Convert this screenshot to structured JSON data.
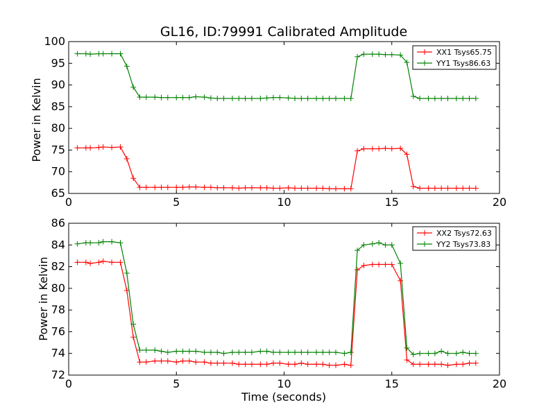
{
  "chart_data": [
    {
      "type": "line",
      "title": "GL16, ID:79991 Calibrated Amplitude",
      "xlabel": "",
      "ylabel": "Power in Kelvin",
      "xlim": [
        0,
        20
      ],
      "ylim": [
        65,
        100
      ],
      "xticks": [
        "0",
        "5",
        "10",
        "15",
        "20"
      ],
      "yticks": [
        "65",
        "70",
        "75",
        "80",
        "85",
        "90",
        "95",
        "100"
      ],
      "grid": false,
      "legend_position": "top-right",
      "x": [
        0.4,
        0.8,
        1.0,
        1.4,
        1.6,
        2.0,
        2.4,
        2.7,
        3.0,
        3.3,
        3.6,
        4.0,
        4.3,
        4.6,
        5.0,
        5.3,
        5.6,
        5.9,
        6.3,
        6.6,
        6.9,
        7.2,
        7.6,
        7.9,
        8.2,
        8.5,
        8.9,
        9.2,
        9.5,
        9.8,
        10.2,
        10.5,
        10.8,
        11.1,
        11.5,
        11.8,
        12.1,
        12.4,
        12.8,
        13.1,
        13.4,
        13.7,
        14.1,
        14.4,
        14.7,
        15.0,
        15.4,
        15.7,
        16.0,
        16.3,
        16.7,
        17.0,
        17.3,
        17.6,
        18.0,
        18.3,
        18.6,
        18.9
      ],
      "series": [
        {
          "name": "XX1 Tsys65.75",
          "color": "#ff0000",
          "values": [
            75.5,
            75.5,
            75.5,
            75.6,
            75.7,
            75.6,
            75.7,
            73.0,
            68.5,
            66.4,
            66.4,
            66.4,
            66.4,
            66.4,
            66.4,
            66.4,
            66.5,
            66.5,
            66.4,
            66.4,
            66.3,
            66.3,
            66.3,
            66.2,
            66.3,
            66.3,
            66.3,
            66.3,
            66.2,
            66.2,
            66.3,
            66.2,
            66.2,
            66.2,
            66.2,
            66.2,
            66.1,
            66.1,
            66.1,
            66.1,
            74.8,
            75.3,
            75.3,
            75.3,
            75.4,
            75.3,
            75.4,
            74.0,
            66.6,
            66.2,
            66.2,
            66.2,
            66.2,
            66.2,
            66.2,
            66.2,
            66.2,
            66.2
          ]
        },
        {
          "name": "YY1 Tsys86.63",
          "color": "#008000",
          "values": [
            97.2,
            97.2,
            97.1,
            97.2,
            97.2,
            97.2,
            97.2,
            94.3,
            89.5,
            87.2,
            87.2,
            87.2,
            87.1,
            87.1,
            87.1,
            87.1,
            87.1,
            87.3,
            87.2,
            87.0,
            86.9,
            86.9,
            86.9,
            86.9,
            86.9,
            86.9,
            86.9,
            87.0,
            87.1,
            87.1,
            87.0,
            86.9,
            86.9,
            86.9,
            86.9,
            86.9,
            86.9,
            86.9,
            86.9,
            86.9,
            96.5,
            97.1,
            97.1,
            97.1,
            97.0,
            97.0,
            96.9,
            95.2,
            87.4,
            86.9,
            86.9,
            86.9,
            86.9,
            86.9,
            86.9,
            86.9,
            86.9,
            86.9
          ]
        }
      ]
    },
    {
      "type": "line",
      "title": "",
      "xlabel": "Time (seconds)",
      "ylabel": "Power in Kelvin",
      "xlim": [
        0,
        20
      ],
      "ylim": [
        72,
        86
      ],
      "xticks": [
        "0",
        "5",
        "10",
        "15",
        "20"
      ],
      "yticks": [
        "72",
        "74",
        "76",
        "78",
        "80",
        "82",
        "84",
        "86"
      ],
      "grid": false,
      "legend_position": "top-right",
      "x": [
        0.4,
        0.8,
        1.0,
        1.4,
        1.6,
        2.0,
        2.4,
        2.7,
        3.0,
        3.3,
        3.6,
        4.0,
        4.3,
        4.6,
        5.0,
        5.3,
        5.6,
        5.9,
        6.3,
        6.6,
        6.9,
        7.2,
        7.6,
        7.9,
        8.2,
        8.5,
        8.9,
        9.2,
        9.5,
        9.8,
        10.2,
        10.5,
        10.8,
        11.1,
        11.5,
        11.8,
        12.1,
        12.4,
        12.8,
        13.1,
        13.4,
        13.7,
        14.1,
        14.4,
        14.7,
        15.0,
        15.4,
        15.7,
        16.0,
        16.3,
        16.7,
        17.0,
        17.3,
        17.6,
        18.0,
        18.3,
        18.6,
        18.9
      ],
      "series": [
        {
          "name": "XX2 Tsys72.63",
          "color": "#ff0000",
          "values": [
            82.4,
            82.4,
            82.3,
            82.4,
            82.5,
            82.4,
            82.4,
            79.8,
            75.5,
            73.2,
            73.2,
            73.3,
            73.3,
            73.3,
            73.2,
            73.3,
            73.3,
            73.2,
            73.2,
            73.1,
            73.1,
            73.1,
            73.1,
            73.0,
            73.0,
            73.0,
            73.0,
            73.0,
            73.1,
            73.1,
            73.0,
            73.0,
            73.1,
            73.0,
            73.0,
            73.0,
            72.9,
            72.9,
            73.0,
            72.9,
            81.7,
            82.1,
            82.2,
            82.2,
            82.2,
            82.2,
            80.7,
            73.4,
            73.0,
            73.0,
            73.0,
            73.0,
            73.0,
            72.9,
            73.0,
            73.0,
            73.1,
            73.1
          ]
        },
        {
          "name": "YY2 Tsys73.83",
          "color": "#008000",
          "values": [
            84.1,
            84.2,
            84.2,
            84.2,
            84.3,
            84.3,
            84.2,
            81.4,
            76.7,
            74.3,
            74.3,
            74.3,
            74.2,
            74.1,
            74.2,
            74.2,
            74.2,
            74.2,
            74.1,
            74.1,
            74.1,
            74.0,
            74.1,
            74.1,
            74.1,
            74.1,
            74.2,
            74.2,
            74.1,
            74.1,
            74.1,
            74.1,
            74.1,
            74.1,
            74.1,
            74.1,
            74.1,
            74.1,
            74.0,
            74.1,
            83.5,
            84.0,
            84.1,
            84.2,
            84.0,
            84.0,
            82.3,
            74.5,
            73.9,
            74.0,
            74.0,
            74.0,
            74.2,
            74.0,
            74.0,
            74.1,
            74.0,
            74.0
          ]
        }
      ]
    }
  ]
}
